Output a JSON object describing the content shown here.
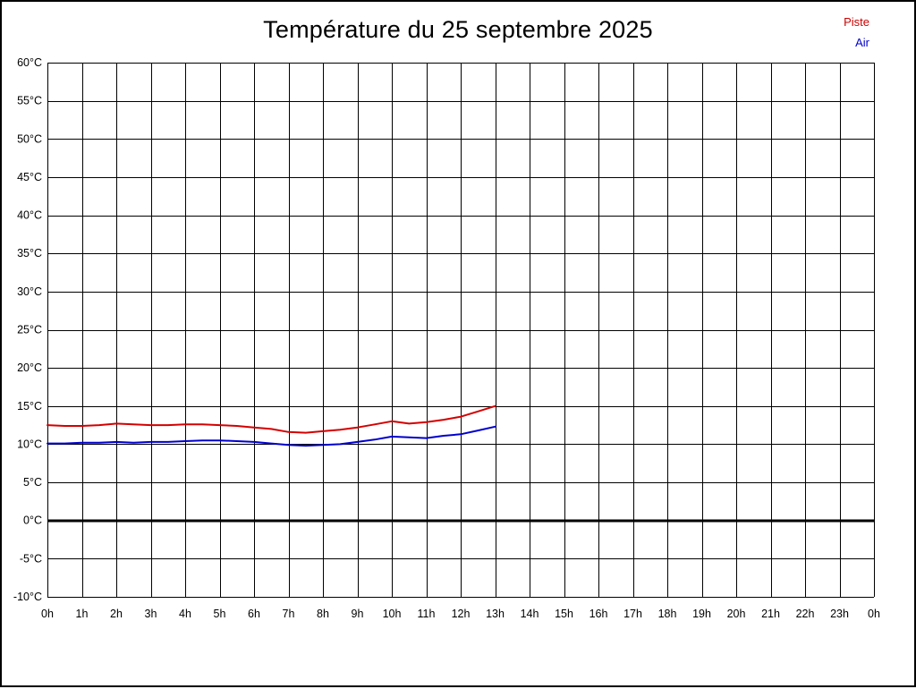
{
  "title": "Température du 25 septembre 2025",
  "legend": [
    {
      "label": "Piste",
      "color": "#cc0000"
    },
    {
      "label": "Air",
      "color": "#0000cc"
    }
  ],
  "colors": {
    "background": "#ffffff",
    "border": "#000000",
    "grid": "#000000",
    "zero_line": "#000000",
    "axis_text": "#000000"
  },
  "chart_data": {
    "type": "line",
    "title": "Température du 25 septembre 2025",
    "xlabel": "",
    "ylabel": "",
    "xlim": [
      0,
      24
    ],
    "ylim": [
      -10,
      60
    ],
    "grid": true,
    "legend_position": "top-right",
    "x_ticks": [
      0,
      1,
      2,
      3,
      4,
      5,
      6,
      7,
      8,
      9,
      10,
      11,
      12,
      13,
      14,
      15,
      16,
      17,
      18,
      19,
      20,
      21,
      22,
      23,
      24
    ],
    "x_tick_labels": [
      "0h",
      "1h",
      "2h",
      "3h",
      "4h",
      "5h",
      "6h",
      "7h",
      "8h",
      "9h",
      "10h",
      "11h",
      "12h",
      "13h",
      "14h",
      "15h",
      "16h",
      "17h",
      "18h",
      "19h",
      "20h",
      "21h",
      "22h",
      "23h",
      "0h"
    ],
    "y_ticks": [
      60,
      55,
      50,
      45,
      40,
      35,
      30,
      25,
      20,
      15,
      10,
      5,
      0,
      -5,
      -10
    ],
    "y_tick_labels": [
      "60°C",
      "55°C",
      "50°C",
      "45°C",
      "40°C",
      "35°C",
      "30°C",
      "25°C",
      "20°C",
      "15°C",
      "10°C",
      "5°C",
      "0°C",
      "-5°C",
      "-10°C"
    ],
    "zero_line": {
      "value": 0,
      "width": 3
    },
    "x": [
      0,
      0.5,
      1,
      1.5,
      2,
      2.5,
      3,
      3.5,
      4,
      4.5,
      5,
      5.5,
      6,
      6.5,
      7,
      7.5,
      8,
      8.5,
      9,
      9.5,
      10,
      10.5,
      11,
      11.5,
      12,
      12.5,
      13
    ],
    "series": [
      {
        "name": "Piste",
        "color": "#d40000",
        "values": [
          12.5,
          12.4,
          12.4,
          12.5,
          12.7,
          12.6,
          12.5,
          12.5,
          12.6,
          12.6,
          12.5,
          12.4,
          12.2,
          12.0,
          11.6,
          11.5,
          11.7,
          11.9,
          12.2,
          12.6,
          13.0,
          12.7,
          12.9,
          13.2,
          13.6,
          14.3,
          15.0
        ]
      },
      {
        "name": "Air",
        "color": "#0000cd",
        "values": [
          10.1,
          10.1,
          10.2,
          10.2,
          10.3,
          10.2,
          10.3,
          10.3,
          10.4,
          10.5,
          10.5,
          10.4,
          10.3,
          10.1,
          9.9,
          9.8,
          9.9,
          10.0,
          10.3,
          10.6,
          11.0,
          10.9,
          10.8,
          11.1,
          11.3,
          11.8,
          12.3
        ]
      }
    ]
  }
}
